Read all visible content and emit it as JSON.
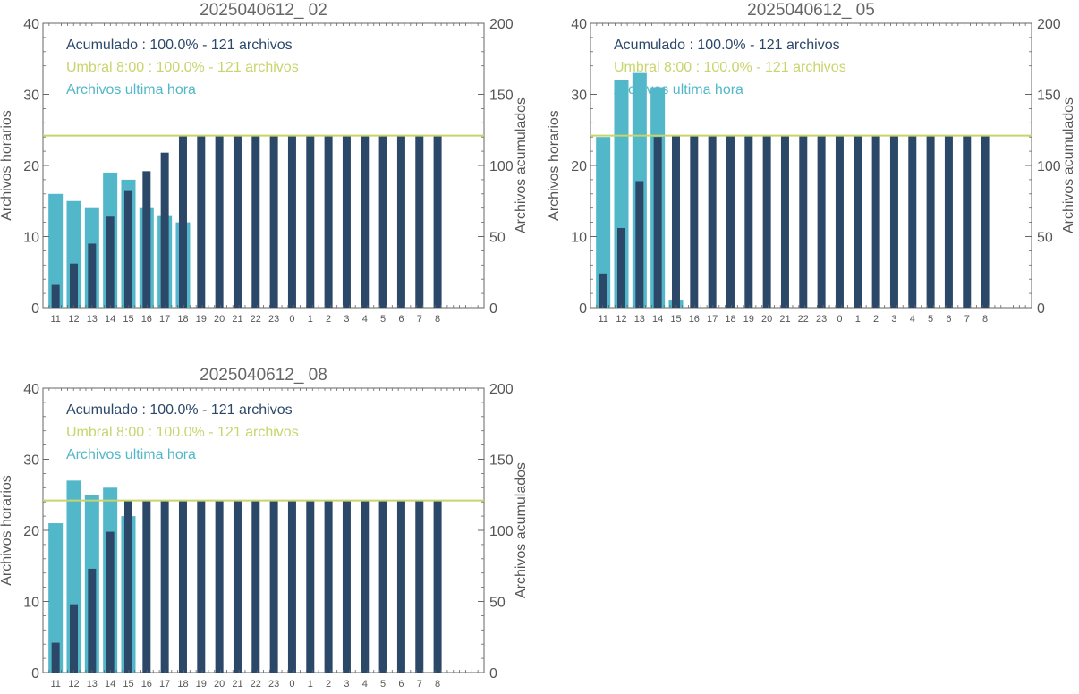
{
  "colors": {
    "hourly": "#52b7c8",
    "cumulative": "#2b4869",
    "threshold": "#c8d46c",
    "axis": "#666666",
    "text": "#555555"
  },
  "chart_data": [
    {
      "type": "bar",
      "title": "2025040612_ 02",
      "ylabel": "Archivos horarios",
      "y2label": "Archivos acumulados",
      "ylim": [
        0,
        40
      ],
      "y2lim": [
        0,
        200
      ],
      "yticks": [
        "0",
        "10",
        "20",
        "30",
        "40"
      ],
      "y2ticks": [
        "0",
        "50",
        "100",
        "150",
        "200"
      ],
      "categories": [
        "11",
        "12",
        "13",
        "14",
        "15",
        "16",
        "17",
        "18",
        "19",
        "20",
        "21",
        "22",
        "23",
        "0",
        "1",
        "2",
        "3",
        "4",
        "5",
        "6",
        "7",
        "8"
      ],
      "legend": [
        {
          "text": "Acumulado : 100.0% - 121 archivos",
          "color": "#2b4869"
        },
        {
          "text": "Umbral 8:00 : 100.0% - 121 archivos",
          "color": "#c8d46c"
        },
        {
          "text": "Archivos ultima hora",
          "color": "#52b7c8"
        }
      ],
      "series": [
        {
          "name": "Archivos ultima hora",
          "axis": "left",
          "values": [
            16,
            15,
            14,
            19,
            18,
            14,
            13,
            12,
            0,
            0,
            0,
            0,
            0,
            0,
            0,
            0,
            0,
            0,
            0,
            0,
            0,
            0
          ]
        },
        {
          "name": "Acumulado",
          "axis": "right",
          "values": [
            16,
            31,
            45,
            64,
            82,
            96,
            109,
            121,
            121,
            121,
            121,
            121,
            121,
            121,
            121,
            121,
            121,
            121,
            121,
            121,
            121,
            121
          ]
        }
      ],
      "threshold": 121
    },
    {
      "type": "bar",
      "title": "2025040612_ 05",
      "ylabel": "Archivos horarios",
      "y2label": "Archivos acumulados",
      "ylim": [
        0,
        40
      ],
      "y2lim": [
        0,
        200
      ],
      "yticks": [
        "0",
        "10",
        "20",
        "30",
        "40"
      ],
      "y2ticks": [
        "0",
        "50",
        "100",
        "150",
        "200"
      ],
      "categories": [
        "11",
        "12",
        "13",
        "14",
        "15",
        "16",
        "17",
        "18",
        "19",
        "20",
        "21",
        "22",
        "23",
        "0",
        "1",
        "2",
        "3",
        "4",
        "5",
        "6",
        "7",
        "8"
      ],
      "legend": [
        {
          "text": "Acumulado : 100.0% - 121 archivos",
          "color": "#2b4869"
        },
        {
          "text": "Umbral 8:00 : 100.0% - 121 archivos",
          "color": "#c8d46c"
        },
        {
          "text": "Archivos ultima hora",
          "color": "#52b7c8"
        }
      ],
      "series": [
        {
          "name": "Archivos ultima hora",
          "axis": "left",
          "values": [
            24,
            32,
            33,
            31,
            1,
            0,
            0,
            0,
            0,
            0,
            0,
            0,
            0,
            0,
            0,
            0,
            0,
            0,
            0,
            0,
            0,
            0
          ]
        },
        {
          "name": "Acumulado",
          "axis": "right",
          "values": [
            24,
            56,
            89,
            120,
            121,
            121,
            121,
            121,
            121,
            121,
            121,
            121,
            121,
            121,
            121,
            121,
            121,
            121,
            121,
            121,
            121,
            121
          ]
        }
      ],
      "threshold": 121
    },
    {
      "type": "bar",
      "title": "2025040612_ 08",
      "ylabel": "Archivos horarios",
      "y2label": "Archivos acumulados",
      "ylim": [
        0,
        40
      ],
      "y2lim": [
        0,
        200
      ],
      "yticks": [
        "0",
        "10",
        "20",
        "30",
        "40"
      ],
      "y2ticks": [
        "0",
        "50",
        "100",
        "150",
        "200"
      ],
      "categories": [
        "11",
        "12",
        "13",
        "14",
        "15",
        "16",
        "17",
        "18",
        "19",
        "20",
        "21",
        "22",
        "23",
        "0",
        "1",
        "2",
        "3",
        "4",
        "5",
        "6",
        "7",
        "8"
      ],
      "legend": [
        {
          "text": "Acumulado : 100.0% - 121 archivos",
          "color": "#2b4869"
        },
        {
          "text": "Umbral 8:00 : 100.0% - 121 archivos",
          "color": "#c8d46c"
        },
        {
          "text": "Archivos ultima hora",
          "color": "#52b7c8"
        }
      ],
      "series": [
        {
          "name": "Archivos ultima hora",
          "axis": "left",
          "values": [
            21,
            27,
            25,
            26,
            22,
            0,
            0,
            0,
            0,
            0,
            0,
            0,
            0,
            0,
            0,
            0,
            0,
            0,
            0,
            0,
            0,
            0
          ]
        },
        {
          "name": "Acumulado",
          "axis": "right",
          "values": [
            21,
            48,
            73,
            99,
            121,
            121,
            121,
            121,
            121,
            121,
            121,
            121,
            121,
            121,
            121,
            121,
            121,
            121,
            121,
            121,
            121,
            121
          ]
        }
      ],
      "threshold": 121
    }
  ]
}
